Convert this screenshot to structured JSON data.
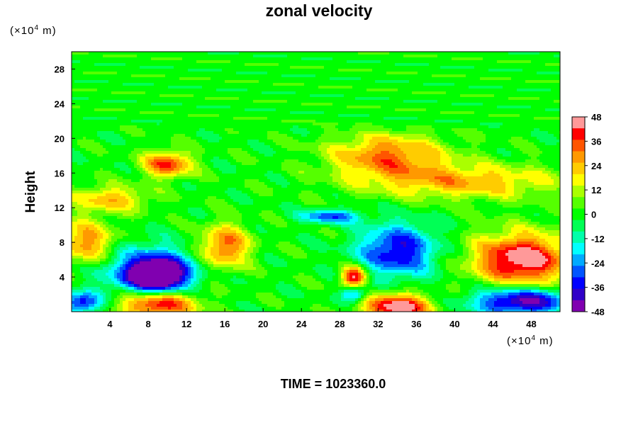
{
  "chart_data": {
    "type": "heatmap",
    "title": "zonal velocity",
    "ylabel": "Height",
    "xunit_prefix": "(×10",
    "xunit_exp": "4",
    "xunit_suffix": " m)",
    "yunit_prefix": "(×10",
    "yunit_exp": "4",
    "yunit_suffix": " m)",
    "xlim": [
      0,
      51
    ],
    "ylim": [
      0,
      30
    ],
    "xticks": [
      4,
      8,
      12,
      16,
      20,
      24,
      28,
      32,
      36,
      40,
      44,
      48
    ],
    "yticks": [
      4,
      8,
      12,
      16,
      20,
      24,
      28
    ],
    "colorbar": {
      "min": -48,
      "max": 48,
      "ticks": [
        48,
        36,
        24,
        12,
        0,
        -12,
        -24,
        -36,
        -48
      ],
      "colors": [
        "#8000b0",
        "#3000c8",
        "#0000ff",
        "#0055ff",
        "#00aaff",
        "#00ffff",
        "#00ffaa",
        "#00ff55",
        "#00ff00",
        "#55ff00",
        "#aaff00",
        "#ffff00",
        "#ffcc00",
        "#ff9900",
        "#ff5500",
        "#ff0000",
        "#ff9999"
      ]
    },
    "field_features": [
      {
        "x": 9,
        "y": 1,
        "rx": 4,
        "ry": 1.8,
        "value": 50
      },
      {
        "x": 34,
        "y": 0.5,
        "rx": 3.5,
        "ry": 1.6,
        "value": 50
      },
      {
        "x": 47,
        "y": 6,
        "rx": 5,
        "ry": 3,
        "value": 50
      },
      {
        "x": 29.5,
        "y": 4,
        "rx": 1.3,
        "ry": 1.2,
        "value": 48
      },
      {
        "x": 16,
        "y": 7.5,
        "rx": 2.5,
        "ry": 2.5,
        "value": 35
      },
      {
        "x": 1.5,
        "y": 8,
        "rx": 3,
        "ry": 2.5,
        "value": 30
      },
      {
        "x": 10,
        "y": 17,
        "rx": 2.5,
        "ry": 1.5,
        "value": 38
      },
      {
        "x": 33,
        "y": 18,
        "rx": 6,
        "ry": 2.5,
        "value": 32
      },
      {
        "x": 41,
        "y": 15,
        "rx": 10,
        "ry": 2,
        "value": 25
      },
      {
        "x": 4,
        "y": 13,
        "rx": 4,
        "ry": 1.5,
        "value": 24
      },
      {
        "x": 9,
        "y": 4,
        "rx": 2.8,
        "ry": 2,
        "value": -50
      },
      {
        "x": 8,
        "y": 4.5,
        "rx": 5,
        "ry": 3,
        "value": -32
      },
      {
        "x": 34,
        "y": 7,
        "rx": 4,
        "ry": 3,
        "value": -38
      },
      {
        "x": 47,
        "y": 1.2,
        "rx": 5,
        "ry": 1.6,
        "value": -48
      },
      {
        "x": 27,
        "y": 11,
        "rx": 3,
        "ry": 0.8,
        "value": -30
      },
      {
        "x": 1,
        "y": 1,
        "rx": 2,
        "ry": 1.2,
        "value": -36
      },
      {
        "x": 29.5,
        "y": 2,
        "rx": 1.3,
        "ry": 0.9,
        "value": -30
      }
    ],
    "upper_band": {
      "ybottom": 20.5,
      "value": 0
    }
  },
  "time_label": "TIME = 1023360.0"
}
